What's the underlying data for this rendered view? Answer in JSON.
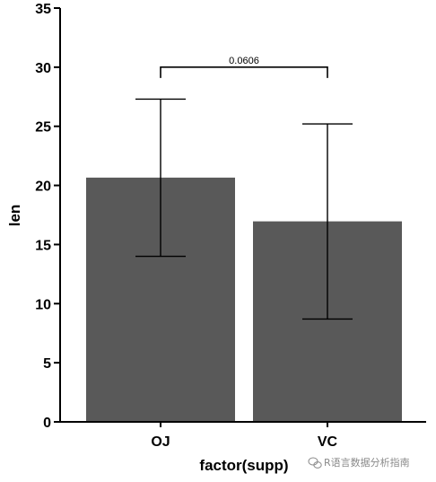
{
  "chart_data": {
    "type": "bar",
    "categories": [
      "OJ",
      "VC"
    ],
    "values": [
      20.66,
      16.96
    ],
    "error": [
      {
        "low": 14.0,
        "high": 27.3
      },
      {
        "low": 8.7,
        "high": 25.2
      }
    ],
    "xlabel": "factor(supp)",
    "ylabel": "len",
    "ylim": [
      0,
      35
    ],
    "yticks": [
      0,
      5,
      10,
      15,
      20,
      25,
      30,
      35
    ],
    "bar_color": "#595959",
    "grid": false,
    "annotation": {
      "label": "0.0606",
      "from": "OJ",
      "to": "VC",
      "y": 30
    }
  },
  "watermark": {
    "text": "R语言数据分析指南",
    "icon": "wechat-icon"
  }
}
